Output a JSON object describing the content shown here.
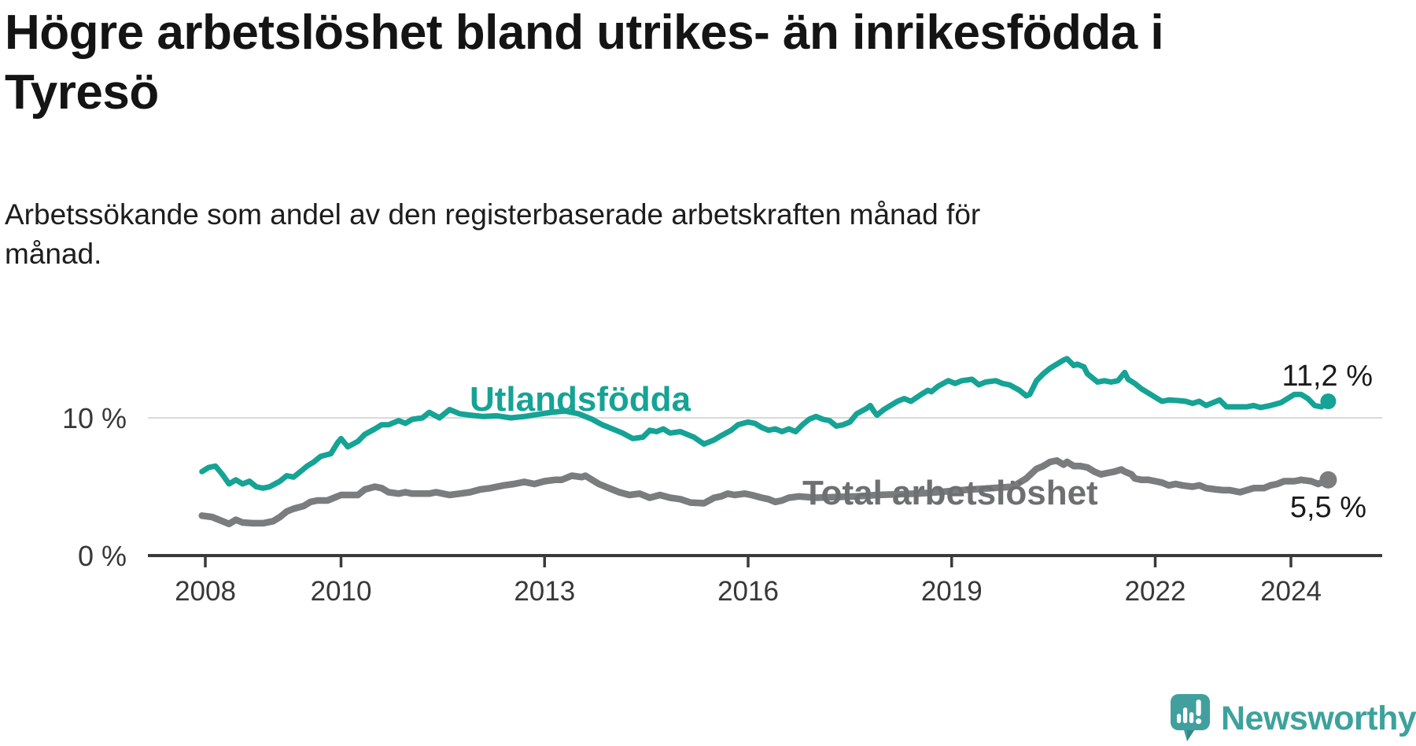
{
  "header": {
    "title_lines": [
      "Högre arbetslöshet bland utrikes- än inrikesfödda i",
      "Tyresö"
    ],
    "subtitle_lines": [
      "Arbetssökande som andel av den registerbaserade arbetskraften månad för",
      "månad."
    ]
  },
  "chart_data": {
    "type": "line",
    "title": "Högre arbetslöshet bland utrikes- än inrikesfödda i Tyresö",
    "subtitle": "Arbetssökande som andel av den registerbaserade arbetskraften månad för månad.",
    "xlabel": "",
    "ylabel": "",
    "x_unit": "year (monthly data)",
    "y_unit": "%",
    "xlim": [
      2007.2,
      2025.4
    ],
    "ylim": [
      0,
      15.5
    ],
    "x_ticks": [
      2008,
      2010,
      2013,
      2016,
      2019,
      2022,
      2024
    ],
    "y_ticks": [
      {
        "value": 10,
        "label": "10 %"
      },
      {
        "value": 0,
        "label": "0 %"
      }
    ],
    "y_gridlines": [
      10
    ],
    "grid": "single light horizontal gridline at 10 %",
    "legend_position": "inline labels on lines",
    "colors": {
      "utlandsfodda": "#15a395",
      "total": "#7b7c7e",
      "total_label": "#6e6f71",
      "axis": "#3a3a3a",
      "gridline": "#d9d9d9",
      "end_label_text": "#1a1a1a"
    },
    "series": [
      {
        "name": "Utlandsfödda",
        "color": "#15a395",
        "end_label": "11,2 %",
        "end_value": 11.2,
        "points": [
          [
            2007.95,
            6.1
          ],
          [
            2008.05,
            6.4
          ],
          [
            2008.15,
            6.5
          ],
          [
            2008.25,
            5.9
          ],
          [
            2008.35,
            5.2
          ],
          [
            2008.45,
            5.5
          ],
          [
            2008.55,
            5.2
          ],
          [
            2008.65,
            5.4
          ],
          [
            2008.75,
            5.0
          ],
          [
            2008.85,
            4.9
          ],
          [
            2008.95,
            5.0
          ],
          [
            2009.1,
            5.4
          ],
          [
            2009.2,
            5.8
          ],
          [
            2009.3,
            5.7
          ],
          [
            2009.4,
            6.1
          ],
          [
            2009.5,
            6.5
          ],
          [
            2009.6,
            6.8
          ],
          [
            2009.7,
            7.2
          ],
          [
            2009.85,
            7.4
          ],
          [
            2009.95,
            8.2
          ],
          [
            2010.0,
            8.5
          ],
          [
            2010.1,
            7.9
          ],
          [
            2010.25,
            8.3
          ],
          [
            2010.35,
            8.8
          ],
          [
            2010.5,
            9.2
          ],
          [
            2010.6,
            9.5
          ],
          [
            2010.7,
            9.5
          ],
          [
            2010.85,
            9.8
          ],
          [
            2010.95,
            9.6
          ],
          [
            2011.05,
            9.9
          ],
          [
            2011.2,
            10.0
          ],
          [
            2011.3,
            10.4
          ],
          [
            2011.45,
            10.0
          ],
          [
            2011.6,
            10.6
          ],
          [
            2011.75,
            10.3
          ],
          [
            2011.9,
            10.2
          ],
          [
            2012.1,
            10.1
          ],
          [
            2012.3,
            10.15
          ],
          [
            2012.5,
            10.0
          ],
          [
            2012.7,
            10.1
          ],
          [
            2012.9,
            10.25
          ],
          [
            2013.1,
            10.4
          ],
          [
            2013.3,
            10.5
          ],
          [
            2013.5,
            10.3
          ],
          [
            2013.7,
            9.9
          ],
          [
            2013.85,
            9.5
          ],
          [
            2014.0,
            9.2
          ],
          [
            2014.15,
            8.9
          ],
          [
            2014.3,
            8.5
          ],
          [
            2014.45,
            8.6
          ],
          [
            2014.55,
            9.1
          ],
          [
            2014.65,
            9.0
          ],
          [
            2014.75,
            9.2
          ],
          [
            2014.85,
            8.9
          ],
          [
            2015.0,
            9.0
          ],
          [
            2015.1,
            8.8
          ],
          [
            2015.2,
            8.6
          ],
          [
            2015.35,
            8.1
          ],
          [
            2015.5,
            8.4
          ],
          [
            2015.6,
            8.7
          ],
          [
            2015.75,
            9.1
          ],
          [
            2015.85,
            9.5
          ],
          [
            2016.0,
            9.7
          ],
          [
            2016.1,
            9.6
          ],
          [
            2016.2,
            9.3
          ],
          [
            2016.3,
            9.1
          ],
          [
            2016.4,
            9.2
          ],
          [
            2016.5,
            9.0
          ],
          [
            2016.6,
            9.2
          ],
          [
            2016.7,
            9.0
          ],
          [
            2016.8,
            9.5
          ],
          [
            2016.9,
            9.9
          ],
          [
            2017.0,
            10.1
          ],
          [
            2017.1,
            9.9
          ],
          [
            2017.2,
            9.8
          ],
          [
            2017.3,
            9.4
          ],
          [
            2017.4,
            9.5
          ],
          [
            2017.5,
            9.7
          ],
          [
            2017.6,
            10.3
          ],
          [
            2017.75,
            10.7
          ],
          [
            2017.8,
            10.9
          ],
          [
            2017.85,
            10.5
          ],
          [
            2017.9,
            10.2
          ],
          [
            2018.0,
            10.6
          ],
          [
            2018.1,
            10.9
          ],
          [
            2018.2,
            11.2
          ],
          [
            2018.3,
            11.4
          ],
          [
            2018.4,
            11.2
          ],
          [
            2018.55,
            11.7
          ],
          [
            2018.65,
            12.0
          ],
          [
            2018.7,
            11.9
          ],
          [
            2018.8,
            12.3
          ],
          [
            2018.95,
            12.7
          ],
          [
            2019.05,
            12.5
          ],
          [
            2019.15,
            12.7
          ],
          [
            2019.3,
            12.8
          ],
          [
            2019.4,
            12.4
          ],
          [
            2019.5,
            12.6
          ],
          [
            2019.65,
            12.7
          ],
          [
            2019.75,
            12.5
          ],
          [
            2019.85,
            12.4
          ],
          [
            2020.0,
            12.0
          ],
          [
            2020.1,
            11.6
          ],
          [
            2020.15,
            11.7
          ],
          [
            2020.25,
            12.7
          ],
          [
            2020.35,
            13.2
          ],
          [
            2020.45,
            13.6
          ],
          [
            2020.55,
            13.9
          ],
          [
            2020.65,
            14.2
          ],
          [
            2020.7,
            14.3
          ],
          [
            2020.8,
            13.8
          ],
          [
            2020.85,
            13.9
          ],
          [
            2020.95,
            13.7
          ],
          [
            2021.0,
            13.2
          ],
          [
            2021.1,
            12.8
          ],
          [
            2021.15,
            12.6
          ],
          [
            2021.25,
            12.7
          ],
          [
            2021.35,
            12.6
          ],
          [
            2021.45,
            12.7
          ],
          [
            2021.55,
            13.3
          ],
          [
            2021.6,
            12.8
          ],
          [
            2021.7,
            12.5
          ],
          [
            2021.8,
            12.1
          ],
          [
            2021.9,
            11.8
          ],
          [
            2022.0,
            11.5
          ],
          [
            2022.1,
            11.2
          ],
          [
            2022.2,
            11.3
          ],
          [
            2022.35,
            11.25
          ],
          [
            2022.45,
            11.2
          ],
          [
            2022.55,
            11.05
          ],
          [
            2022.65,
            11.2
          ],
          [
            2022.75,
            10.9
          ],
          [
            2022.85,
            11.1
          ],
          [
            2022.95,
            11.3
          ],
          [
            2023.05,
            10.8
          ],
          [
            2023.2,
            10.8
          ],
          [
            2023.35,
            10.8
          ],
          [
            2023.45,
            10.9
          ],
          [
            2023.55,
            10.75
          ],
          [
            2023.7,
            10.9
          ],
          [
            2023.85,
            11.1
          ],
          [
            2023.95,
            11.4
          ],
          [
            2024.05,
            11.7
          ],
          [
            2024.15,
            11.7
          ],
          [
            2024.25,
            11.4
          ],
          [
            2024.35,
            10.9
          ],
          [
            2024.45,
            10.8
          ],
          [
            2024.55,
            11.2
          ]
        ]
      },
      {
        "name": "Total arbetslöshet",
        "color": "#7b7c7e",
        "end_label": "5,5 %",
        "end_value": 5.5,
        "points": [
          [
            2007.95,
            2.9
          ],
          [
            2008.1,
            2.8
          ],
          [
            2008.2,
            2.6
          ],
          [
            2008.35,
            2.3
          ],
          [
            2008.45,
            2.6
          ],
          [
            2008.55,
            2.4
          ],
          [
            2008.7,
            2.35
          ],
          [
            2008.85,
            2.35
          ],
          [
            2009.0,
            2.5
          ],
          [
            2009.1,
            2.8
          ],
          [
            2009.2,
            3.2
          ],
          [
            2009.3,
            3.4
          ],
          [
            2009.45,
            3.6
          ],
          [
            2009.55,
            3.9
          ],
          [
            2009.65,
            4.0
          ],
          [
            2009.8,
            4.0
          ],
          [
            2009.9,
            4.2
          ],
          [
            2010.0,
            4.4
          ],
          [
            2010.15,
            4.4
          ],
          [
            2010.25,
            4.4
          ],
          [
            2010.35,
            4.8
          ],
          [
            2010.5,
            5.0
          ],
          [
            2010.6,
            4.9
          ],
          [
            2010.7,
            4.6
          ],
          [
            2010.85,
            4.5
          ],
          [
            2010.95,
            4.6
          ],
          [
            2011.05,
            4.5
          ],
          [
            2011.2,
            4.5
          ],
          [
            2011.3,
            4.5
          ],
          [
            2011.4,
            4.6
          ],
          [
            2011.5,
            4.5
          ],
          [
            2011.6,
            4.4
          ],
          [
            2011.75,
            4.5
          ],
          [
            2011.9,
            4.6
          ],
          [
            2012.05,
            4.8
          ],
          [
            2012.2,
            4.9
          ],
          [
            2012.4,
            5.1
          ],
          [
            2012.55,
            5.2
          ],
          [
            2012.7,
            5.35
          ],
          [
            2012.85,
            5.2
          ],
          [
            2013.0,
            5.4
          ],
          [
            2013.15,
            5.5
          ],
          [
            2013.25,
            5.5
          ],
          [
            2013.4,
            5.8
          ],
          [
            2013.55,
            5.7
          ],
          [
            2013.6,
            5.8
          ],
          [
            2013.8,
            5.2
          ],
          [
            2013.95,
            4.9
          ],
          [
            2014.1,
            4.6
          ],
          [
            2014.25,
            4.4
          ],
          [
            2014.4,
            4.5
          ],
          [
            2014.55,
            4.2
          ],
          [
            2014.7,
            4.4
          ],
          [
            2014.85,
            4.2
          ],
          [
            2015.0,
            4.1
          ],
          [
            2015.15,
            3.85
          ],
          [
            2015.35,
            3.8
          ],
          [
            2015.5,
            4.2
          ],
          [
            2015.6,
            4.3
          ],
          [
            2015.7,
            4.5
          ],
          [
            2015.8,
            4.4
          ],
          [
            2015.95,
            4.5
          ],
          [
            2016.05,
            4.4
          ],
          [
            2016.2,
            4.2
          ],
          [
            2016.3,
            4.1
          ],
          [
            2016.4,
            3.9
          ],
          [
            2016.5,
            4.0
          ],
          [
            2016.6,
            4.2
          ],
          [
            2016.75,
            4.3
          ],
          [
            2017.0,
            4.2
          ],
          [
            2017.3,
            4.25
          ],
          [
            2017.6,
            4.3
          ],
          [
            2017.9,
            4.4
          ],
          [
            2018.2,
            4.45
          ],
          [
            2018.5,
            4.5
          ],
          [
            2018.8,
            4.6
          ],
          [
            2019.0,
            4.7
          ],
          [
            2019.3,
            4.8
          ],
          [
            2019.6,
            4.9
          ],
          [
            2019.9,
            5.0
          ],
          [
            2020.1,
            5.6
          ],
          [
            2020.25,
            6.3
          ],
          [
            2020.35,
            6.5
          ],
          [
            2020.45,
            6.8
          ],
          [
            2020.55,
            6.9
          ],
          [
            2020.65,
            6.6
          ],
          [
            2020.7,
            6.8
          ],
          [
            2020.8,
            6.5
          ],
          [
            2020.9,
            6.5
          ],
          [
            2021.0,
            6.4
          ],
          [
            2021.1,
            6.1
          ],
          [
            2021.2,
            5.9
          ],
          [
            2021.3,
            6.0
          ],
          [
            2021.4,
            6.1
          ],
          [
            2021.5,
            6.25
          ],
          [
            2021.55,
            6.1
          ],
          [
            2021.65,
            5.9
          ],
          [
            2021.7,
            5.6
          ],
          [
            2021.8,
            5.5
          ],
          [
            2021.9,
            5.5
          ],
          [
            2022.0,
            5.4
          ],
          [
            2022.1,
            5.3
          ],
          [
            2022.2,
            5.1
          ],
          [
            2022.3,
            5.2
          ],
          [
            2022.4,
            5.1
          ],
          [
            2022.55,
            5.0
          ],
          [
            2022.65,
            5.1
          ],
          [
            2022.75,
            4.9
          ],
          [
            2022.9,
            4.8
          ],
          [
            2023.0,
            4.75
          ],
          [
            2023.1,
            4.75
          ],
          [
            2023.25,
            4.6
          ],
          [
            2023.35,
            4.75
          ],
          [
            2023.45,
            4.9
          ],
          [
            2023.6,
            4.9
          ],
          [
            2023.7,
            5.1
          ],
          [
            2023.8,
            5.2
          ],
          [
            2023.9,
            5.4
          ],
          [
            2024.05,
            5.4
          ],
          [
            2024.15,
            5.5
          ],
          [
            2024.3,
            5.4
          ],
          [
            2024.4,
            5.2
          ],
          [
            2024.55,
            5.5
          ]
        ]
      }
    ]
  },
  "logo": {
    "text": "Newsworthy",
    "color": "#3da29c",
    "icon": "speech-bubble-with-bar-chart-and-exclamation"
  }
}
